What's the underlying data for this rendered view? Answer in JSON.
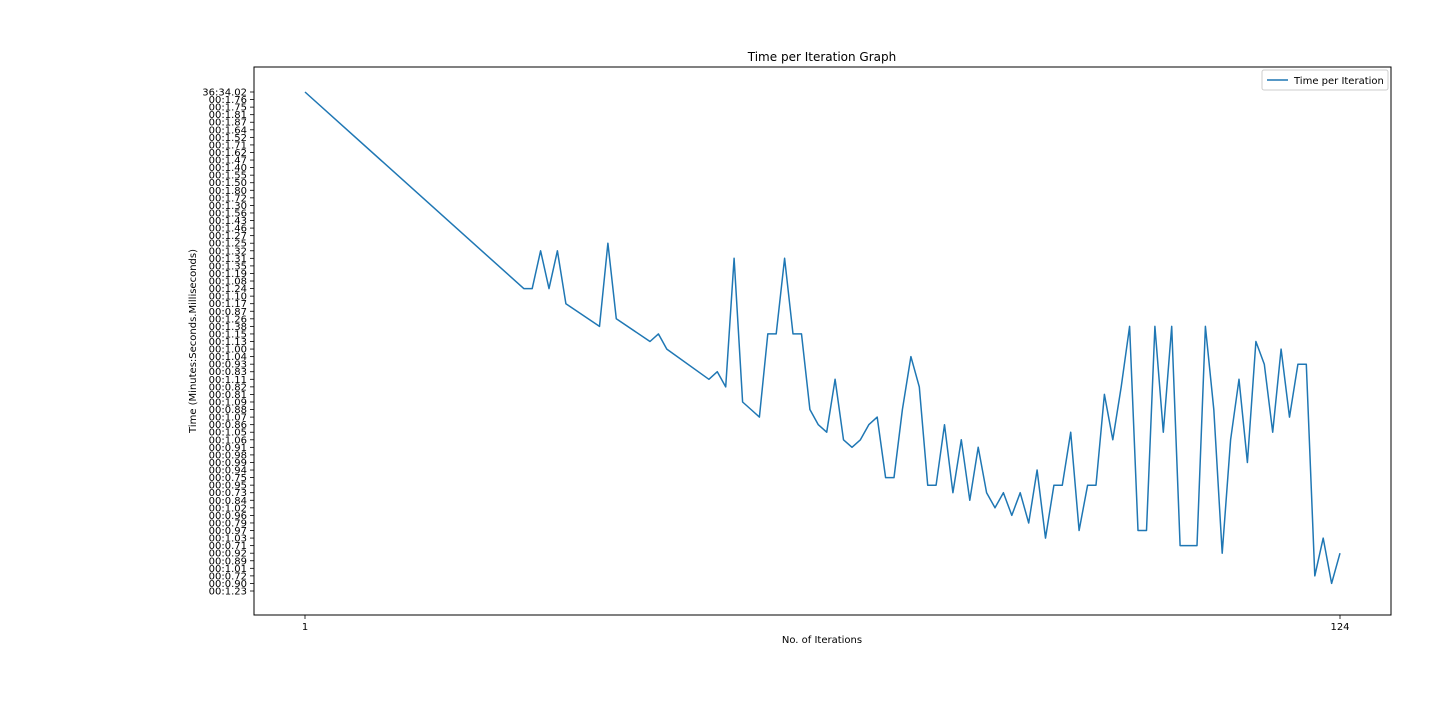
{
  "chart_data": {
    "type": "line",
    "title": "Time per Iteration Graph",
    "xlabel": "No. of Iterations",
    "ylabel": "Time (Minutes:Seconds.Milliseconds)",
    "x_ticks": [
      "1",
      "124"
    ],
    "x_range": [
      1,
      124
    ],
    "y_tick_labels": [
      "00:1.23",
      "00:0.90",
      "00:0.72",
      "00:1.01",
      "00:0.89",
      "00:0.92",
      "00:0.71",
      "00:1.03",
      "00:0.97",
      "00:0.79",
      "00:0.96",
      "00:1.02",
      "00:0.84",
      "00:0.73",
      "00:0.95",
      "00:0.75",
      "00:0.94",
      "00:0.99",
      "00:0.98",
      "00:0.91",
      "00:1.06",
      "00:1.05",
      "00:0.86",
      "00:1.07",
      "00:0.88",
      "00:1.09",
      "00:0.81",
      "00:0.82",
      "00:1.11",
      "00:0.83",
      "00:0.93",
      "00:1.04",
      "00:1.00",
      "00:1.13",
      "00:1.15",
      "00:1.38",
      "00:1.26",
      "00:0.87",
      "00:1.17",
      "00:1.10",
      "00:1.24",
      "00:1.08",
      "00:1.19",
      "00:1.35",
      "00:1.31",
      "00:1.32",
      "00:1.25",
      "00:1.27",
      "00:1.46",
      "00:1.43",
      "00:1.56",
      "00:1.30",
      "00:1.72",
      "00:1.80",
      "00:1.50",
      "00:1.55",
      "00:1.40",
      "00:1.47",
      "00:1.62",
      "00:1.71",
      "00:1.52",
      "00:1.64",
      "00:1.87",
      "00:1.81",
      "00:1.75",
      "00:1.76",
      "36:34.02"
    ],
    "legend": {
      "position": "top-right",
      "entries": [
        "Time per Iteration"
      ]
    },
    "grid": false,
    "colors": {
      "line": "#1f77b4",
      "axes": "#000000"
    },
    "series": [
      {
        "name": "Time per Iteration",
        "x": [
          1,
          27,
          28,
          29,
          30,
          31,
          32,
          36,
          37,
          38,
          42,
          43,
          44,
          49,
          50,
          51,
          52,
          53,
          54,
          55,
          56,
          57,
          58,
          59,
          60,
          61,
          62,
          63,
          64,
          65,
          66,
          67,
          68,
          69,
          70,
          71,
          72,
          73,
          74,
          75,
          76,
          77,
          78,
          79,
          80,
          81,
          82,
          83,
          84,
          85,
          86,
          87,
          88,
          89,
          90,
          91,
          92,
          93,
          94,
          95,
          96,
          97,
          98,
          99,
          100,
          101,
          102,
          103,
          104,
          105,
          106,
          107,
          108,
          109,
          110,
          111,
          112,
          113,
          114,
          115,
          116,
          117,
          118,
          119,
          120,
          121,
          122,
          123,
          124
        ],
        "y": [
          66,
          40,
          40,
          45,
          40,
          45,
          38,
          35,
          46,
          36,
          33,
          34,
          32,
          28,
          29,
          27,
          44,
          25,
          24,
          23,
          34,
          34,
          44,
          34,
          34,
          24,
          22,
          21,
          28,
          20,
          19,
          20,
          22,
          23,
          15,
          15,
          24,
          31,
          27,
          14,
          14,
          22,
          13,
          20,
          12,
          19,
          13,
          11,
          13,
          10,
          13,
          9,
          16,
          7,
          14,
          14,
          21,
          8,
          14,
          14,
          26,
          20,
          27,
          35,
          8,
          8,
          35,
          21,
          35,
          6,
          6,
          6,
          35,
          24,
          5,
          20,
          28,
          17,
          33,
          30,
          21,
          32,
          23,
          30,
          30,
          2,
          7,
          1,
          5
        ]
      }
    ]
  }
}
